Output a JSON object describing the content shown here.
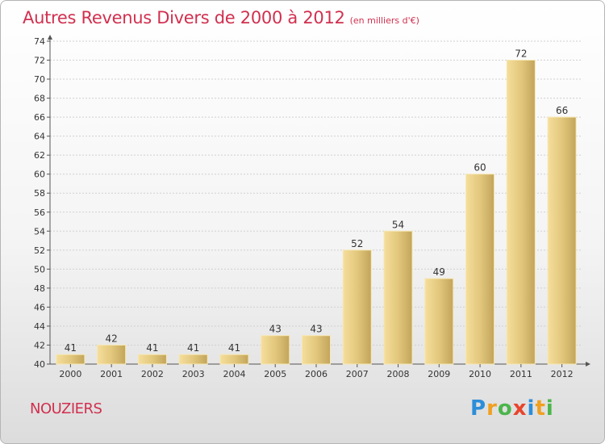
{
  "header": {
    "title": "Autres Revenus Divers de 2000 à 2012",
    "subtitle": "(en milliers d'€)"
  },
  "footer": {
    "commune": "NOUZIERS",
    "logo": {
      "p": "P",
      "r": "r",
      "o": "o",
      "x": "x",
      "i1": "i",
      "t": "t",
      "i2": "i"
    }
  },
  "colors": {
    "bar_fill": "#e2c77c",
    "bar_highlight": "#f5de9c",
    "bar_shadow": "#c2a55a",
    "title": "#d1304f"
  },
  "chart_data": {
    "type": "bar",
    "title": "Autres Revenus Divers de 2000 à 2012",
    "subtitle": "(en milliers d'€)",
    "categories": [
      "2000",
      "2001",
      "2002",
      "2003",
      "2004",
      "2005",
      "2006",
      "2007",
      "2008",
      "2009",
      "2010",
      "2011",
      "2012"
    ],
    "values": [
      41,
      42,
      41,
      41,
      41,
      43,
      43,
      52,
      54,
      49,
      60,
      72,
      66
    ],
    "ylim": [
      40,
      74
    ],
    "yticks": [
      40,
      42,
      44,
      46,
      48,
      50,
      52,
      54,
      56,
      58,
      60,
      62,
      64,
      66,
      68,
      70,
      72,
      74
    ],
    "grid": true
  }
}
